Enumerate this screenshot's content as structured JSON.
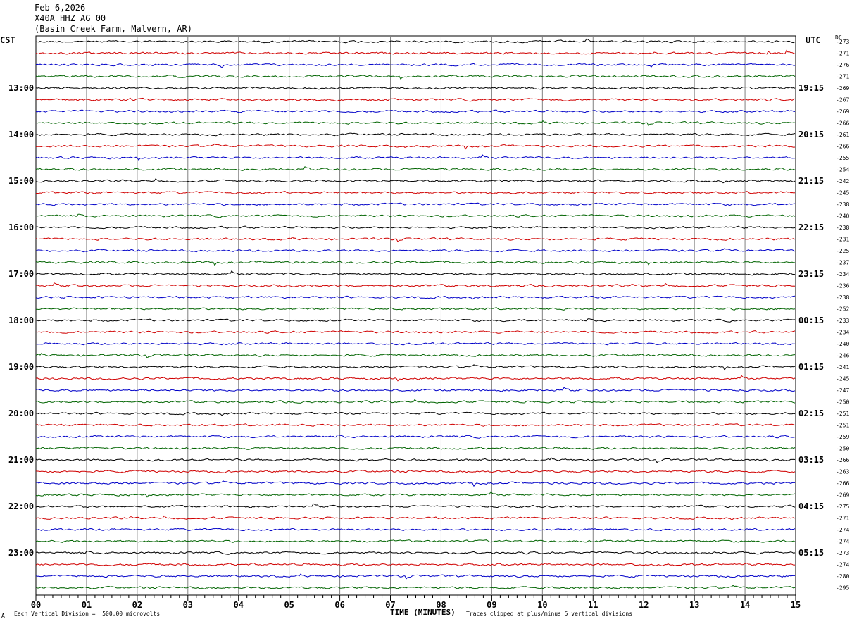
{
  "header": {
    "date": "Feb 6,2026",
    "station": "X40A HHZ AG 00",
    "location": "(Basin Creek Farm, Malvern, AR)"
  },
  "left_tz": "CST",
  "right_tz": "UTC",
  "dc_label": "DC",
  "footer": {
    "scale": "Each Vertical Division =  500.00 microvolts",
    "clip": "Traces clipped at plus/minus 5 vertical divisions",
    "corner_mark": "A"
  },
  "colors": {
    "trace_cycle": [
      "#000000",
      "#d00000",
      "#0000c8",
      "#006400"
    ],
    "grid": "#808080",
    "frame": "#000000"
  },
  "chart_data": {
    "type": "line",
    "title": "",
    "xlabel": "TIME (MINUTES)",
    "ylabel": "",
    "xlim": [
      0,
      15
    ],
    "x_ticks": [
      "00",
      "01",
      "02",
      "03",
      "04",
      "05",
      "06",
      "07",
      "08",
      "09",
      "10",
      "11",
      "12",
      "13",
      "14",
      "15"
    ],
    "traces_per_hour": 4,
    "trace_minutes": 15,
    "left_hour_labels": [
      "13:00",
      "14:00",
      "15:00",
      "16:00",
      "17:00",
      "18:00",
      "19:00",
      "20:00",
      "21:00",
      "22:00",
      "23:00"
    ],
    "right_hour_labels": [
      "19:15",
      "20:15",
      "21:15",
      "22:15",
      "23:15",
      "00:15",
      "01:15",
      "02:15",
      "03:15",
      "04:15",
      "05:15"
    ],
    "dc_offsets": [
      -273,
      -271,
      -276,
      -271,
      -269,
      -267,
      -269,
      -266,
      -261,
      -266,
      -255,
      -254,
      -242,
      -245,
      -238,
      -240,
      -238,
      -231,
      -225,
      -237,
      -234,
      -236,
      -238,
      -252,
      -233,
      -234,
      -240,
      -246,
      -241,
      -245,
      -247,
      -250,
      -251,
      -251,
      -259,
      -250,
      -266,
      -263,
      -266,
      -269,
      -275,
      -271,
      -274,
      -274,
      -273,
      -274,
      -280,
      -295
    ],
    "grid": true
  }
}
